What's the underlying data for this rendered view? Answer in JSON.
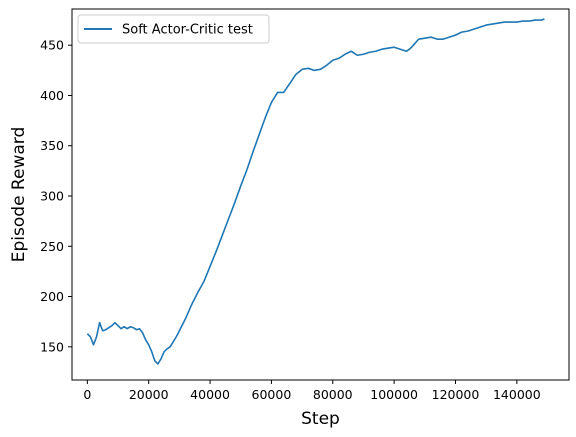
{
  "chart_data": {
    "type": "line",
    "xlabel": "Step",
    "ylabel": "Episode Reward",
    "xlim": [
      -5000,
      157000
    ],
    "ylim": [
      117,
      486
    ],
    "grid": false,
    "legend_position": "top-left",
    "x_ticks": [
      0,
      20000,
      40000,
      60000,
      80000,
      100000,
      120000,
      140000
    ],
    "x_tick_labels": [
      "0",
      "20000",
      "40000",
      "60000",
      "80000",
      "100000",
      "120000",
      "140000"
    ],
    "y_ticks": [
      150,
      200,
      250,
      300,
      350,
      400,
      450
    ],
    "y_tick_labels": [
      "150",
      "200",
      "250",
      "300",
      "350",
      "400",
      "450"
    ],
    "series": [
      {
        "name": "Soft Actor-Critic test",
        "color": "#1f77b4",
        "x": [
          0,
          1000,
          2000,
          3000,
          4000,
          5000,
          6000,
          7000,
          8000,
          9000,
          10000,
          11000,
          12000,
          13000,
          14000,
          15000,
          16000,
          17000,
          18000,
          19000,
          20000,
          21000,
          22000,
          23000,
          24000,
          25000,
          26000,
          27000,
          28000,
          29000,
          30000,
          32000,
          34000,
          36000,
          38000,
          40000,
          42000,
          44000,
          46000,
          48000,
          50000,
          52000,
          54000,
          56000,
          58000,
          60000,
          62000,
          64000,
          66000,
          68000,
          70000,
          72000,
          74000,
          76000,
          78000,
          80000,
          82000,
          84000,
          86000,
          88000,
          90000,
          92000,
          94000,
          96000,
          98000,
          100000,
          102000,
          104000,
          105000,
          106000,
          108000,
          110000,
          112000,
          114000,
          116000,
          118000,
          120000,
          122000,
          124000,
          126000,
          128000,
          130000,
          132000,
          134000,
          136000,
          138000,
          140000,
          142000,
          144000,
          146000,
          148000,
          149000
        ],
        "values": [
          163,
          160,
          152,
          160,
          174,
          166,
          167,
          169,
          171,
          174,
          171,
          168,
          170,
          168,
          170,
          169,
          167,
          168,
          164,
          157,
          152,
          145,
          136,
          133,
          138,
          145,
          148,
          150,
          155,
          160,
          166,
          178,
          192,
          204,
          215,
          230,
          245,
          261,
          277,
          293,
          310,
          326,
          344,
          361,
          378,
          393,
          403,
          403,
          412,
          421,
          426,
          427,
          425,
          426,
          430,
          435,
          437,
          441,
          444,
          440,
          441,
          443,
          444,
          446,
          447,
          448,
          446,
          444,
          446,
          449,
          456,
          457,
          458,
          456,
          456,
          458,
          460,
          463,
          464,
          466,
          468,
          470,
          471,
          472,
          473,
          473,
          473,
          474,
          474,
          475,
          475,
          476
        ]
      }
    ]
  }
}
